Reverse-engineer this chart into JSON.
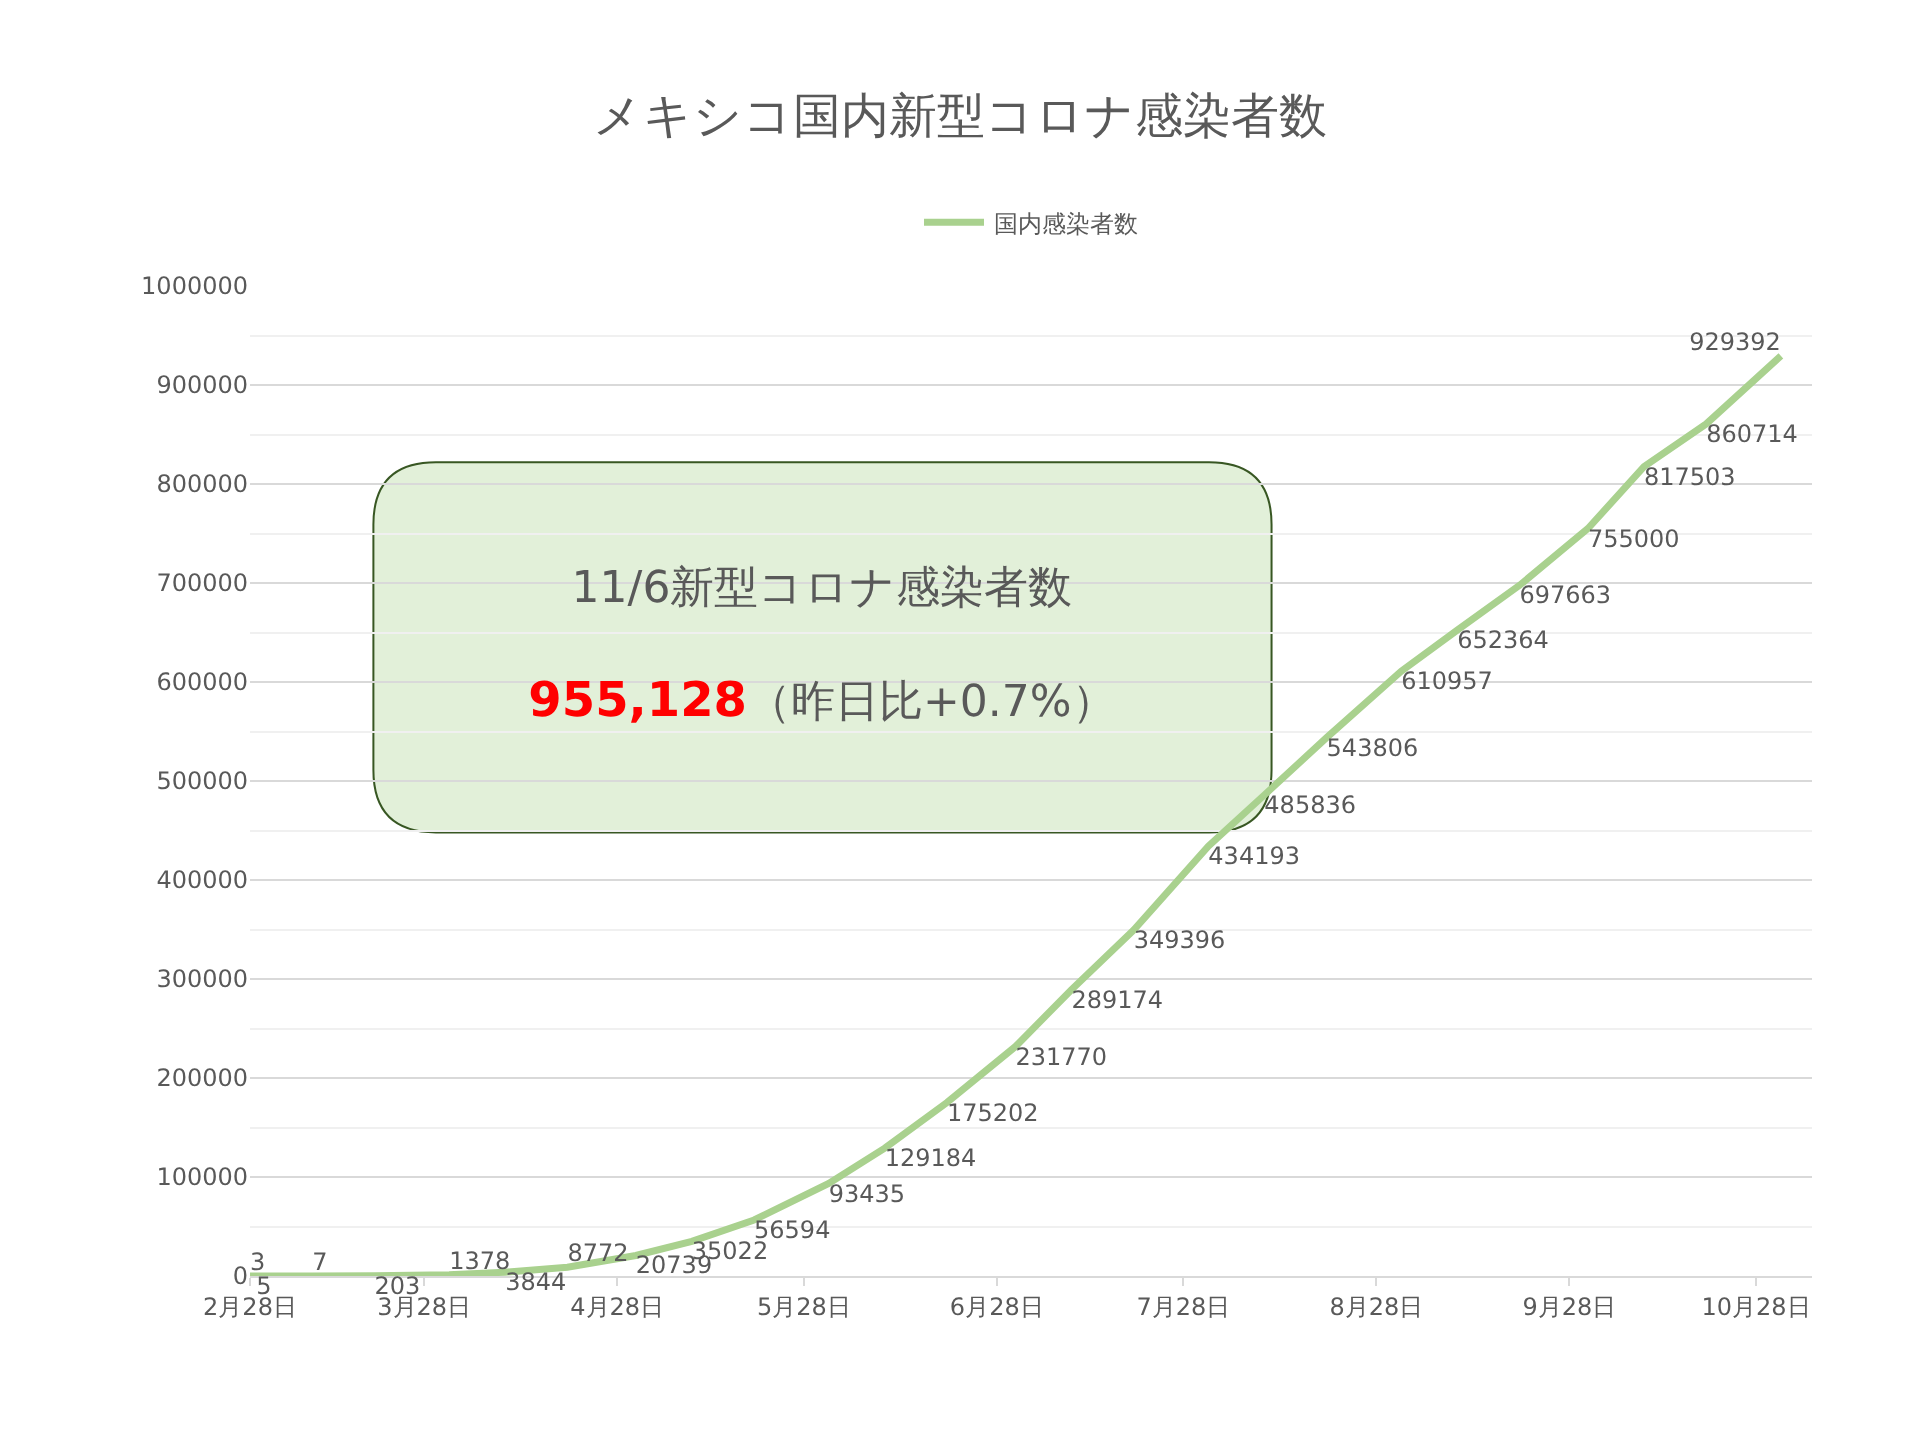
{
  "chart_data": {
    "type": "line",
    "title": "メキシコ国内新型コロナ感染者数",
    "x": [
      "--02-28",
      "--03-01",
      "--03-10",
      "--03-20",
      "--04-01",
      "--04-10",
      "--04-20",
      "--05-01",
      "--05-10",
      "--05-20",
      "--06-01",
      "--06-10",
      "--06-20",
      "--07-01",
      "--07-10",
      "--07-20",
      "--08-01",
      "--08-10",
      "--08-20",
      "--09-01",
      "--09-10",
      "--09-20",
      "--10-01",
      "--10-10",
      "--10-20",
      "--11-01"
    ],
    "series": [
      {
        "name": "国内感染者数",
        "color": "#a9d18e",
        "values": [
          3,
          5,
          7,
          203,
          1378,
          3844,
          8772,
          20739,
          35022,
          56594,
          93435,
          129184,
          175202,
          231770,
          289174,
          349396,
          434193,
          485836,
          543806,
          610957,
          652364,
          697663,
          755000,
          817503,
          860714,
          929392
        ]
      }
    ],
    "data_labels": true,
    "xlim": [
      "--02-28",
      "--11-06"
    ],
    "xticks": [
      {
        "value": "--02-28",
        "label": "2月28日"
      },
      {
        "value": "--03-28",
        "label": "3月28日"
      },
      {
        "value": "--04-28",
        "label": "4月28日"
      },
      {
        "value": "--05-28",
        "label": "5月28日"
      },
      {
        "value": "--06-28",
        "label": "6月28日"
      },
      {
        "value": "--07-28",
        "label": "7月28日"
      },
      {
        "value": "--08-28",
        "label": "8月28日"
      },
      {
        "value": "--09-28",
        "label": "9月28日"
      },
      {
        "value": "--10-28",
        "label": "10月28日"
      }
    ],
    "ylim": [
      0,
      1000000
    ],
    "yticks": [
      0,
      100000,
      200000,
      300000,
      400000,
      500000,
      600000,
      700000,
      800000,
      900000,
      1000000
    ],
    "grid": "y",
    "legend": "top",
    "marker": "none",
    "line_style": "solid",
    "annotations": [
      "11/6新型コロナ感染者数",
      "955,128",
      "（昨日比+0.7%）"
    ]
  }
}
